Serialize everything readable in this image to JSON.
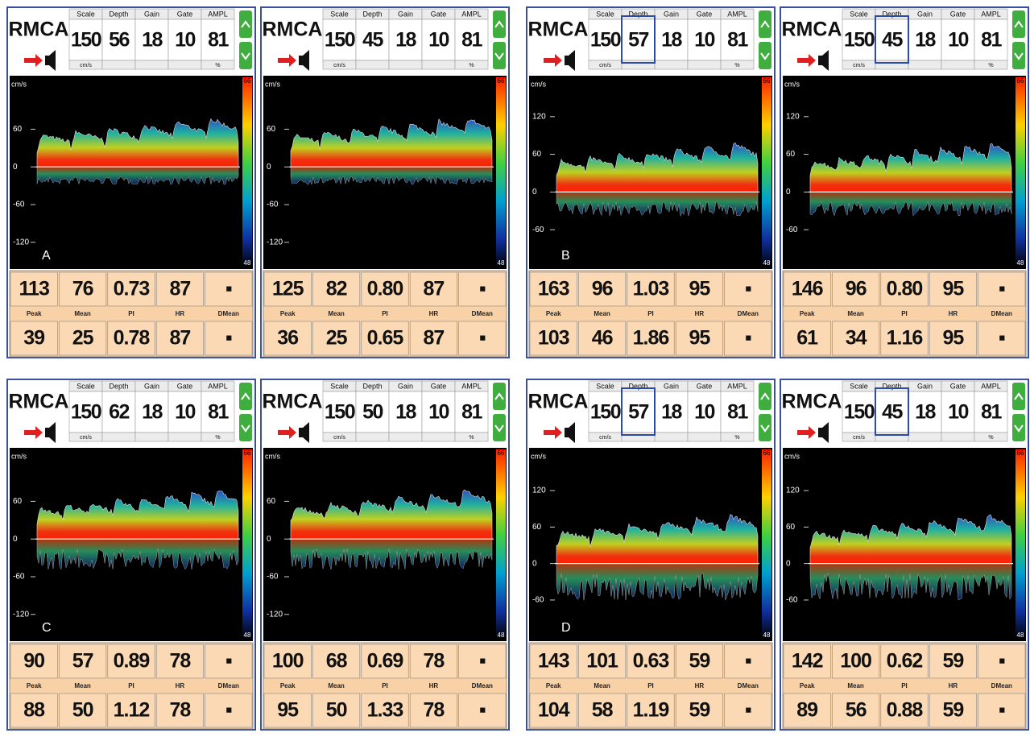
{
  "title": "RMCA",
  "header_labels": [
    "Scale",
    "Depth",
    "Gain",
    "Gate",
    "AMPL"
  ],
  "units": [
    "cm/s",
    "%"
  ],
  "axis_unit": "cm/s",
  "colorbar_labels": [
    "66",
    "48"
  ],
  "result_labels": [
    "Peak",
    "Mean",
    "PI",
    "HR",
    "DMean"
  ],
  "groups": [
    {
      "letter": "A",
      "panels": [
        {
          "header_values": [
            150,
            56,
            18,
            10,
            81
          ],
          "depth_highlighted": false,
          "ylim": [
            -160,
            140
          ],
          "yticks": [
            60,
            0,
            -60,
            -120
          ],
          "row1": [
            "113",
            "76",
            "0.73",
            "87",
            "▪"
          ],
          "row2": [
            "39",
            "25",
            "0.78",
            "87",
            "▪"
          ]
        },
        {
          "header_values": [
            150,
            45,
            18,
            10,
            81
          ],
          "depth_highlighted": false,
          "ylim": [
            -160,
            140
          ],
          "yticks": [
            60,
            0,
            -60,
            -120
          ],
          "row1": [
            "125",
            "82",
            "0.80",
            "87",
            "▪"
          ],
          "row2": [
            "36",
            "25",
            "0.65",
            "87",
            "▪"
          ]
        }
      ]
    },
    {
      "letter": "B",
      "panels": [
        {
          "header_values": [
            150,
            57,
            18,
            10,
            81
          ],
          "depth_highlighted": true,
          "ylim": [
            -120,
            180
          ],
          "yticks": [
            120,
            60,
            0,
            -60
          ],
          "row1": [
            "163",
            "96",
            "1.03",
            "95",
            "▪"
          ],
          "row2": [
            "103",
            "46",
            "1.86",
            "95",
            "▪"
          ]
        },
        {
          "header_values": [
            150,
            45,
            18,
            10,
            81
          ],
          "depth_highlighted": true,
          "ylim": [
            -120,
            180
          ],
          "yticks": [
            120,
            60,
            0,
            -60
          ],
          "row1": [
            "146",
            "96",
            "0.80",
            "95",
            "▪"
          ],
          "row2": [
            "61",
            "34",
            "1.16",
            "95",
            "▪"
          ]
        }
      ]
    },
    {
      "letter": "C",
      "panels": [
        {
          "header_values": [
            150,
            62,
            18,
            10,
            81
          ],
          "depth_highlighted": false,
          "ylim": [
            -160,
            140
          ],
          "yticks": [
            60,
            0,
            -60,
            -120
          ],
          "row1": [
            "90",
            "57",
            "0.89",
            "78",
            "▪"
          ],
          "row2": [
            "88",
            "50",
            "1.12",
            "78",
            "▪"
          ]
        },
        {
          "header_values": [
            150,
            50,
            18,
            10,
            81
          ],
          "depth_highlighted": false,
          "ylim": [
            -160,
            140
          ],
          "yticks": [
            60,
            0,
            -60,
            -120
          ],
          "row1": [
            "100",
            "68",
            "0.69",
            "78",
            "▪"
          ],
          "row2": [
            "95",
            "50",
            "1.33",
            "78",
            "▪"
          ]
        }
      ]
    },
    {
      "letter": "D",
      "panels": [
        {
          "header_values": [
            150,
            57,
            18,
            10,
            81
          ],
          "depth_highlighted": true,
          "ylim": [
            -125,
            185
          ],
          "yticks": [
            120,
            60,
            0,
            -60
          ],
          "row1": [
            "143",
            "101",
            "0.63",
            "59",
            "▪"
          ],
          "row2": [
            "104",
            "58",
            "1.19",
            "59",
            "▪"
          ]
        },
        {
          "header_values": [
            150,
            45,
            18,
            10,
            81
          ],
          "depth_highlighted": true,
          "ylim": [
            -125,
            185
          ],
          "yticks": [
            120,
            60,
            0,
            -60
          ],
          "row1": [
            "142",
            "100",
            "0.62",
            "59",
            "▪"
          ],
          "row2": [
            "89",
            "56",
            "0.88",
            "59",
            "▪"
          ]
        }
      ]
    }
  ]
}
